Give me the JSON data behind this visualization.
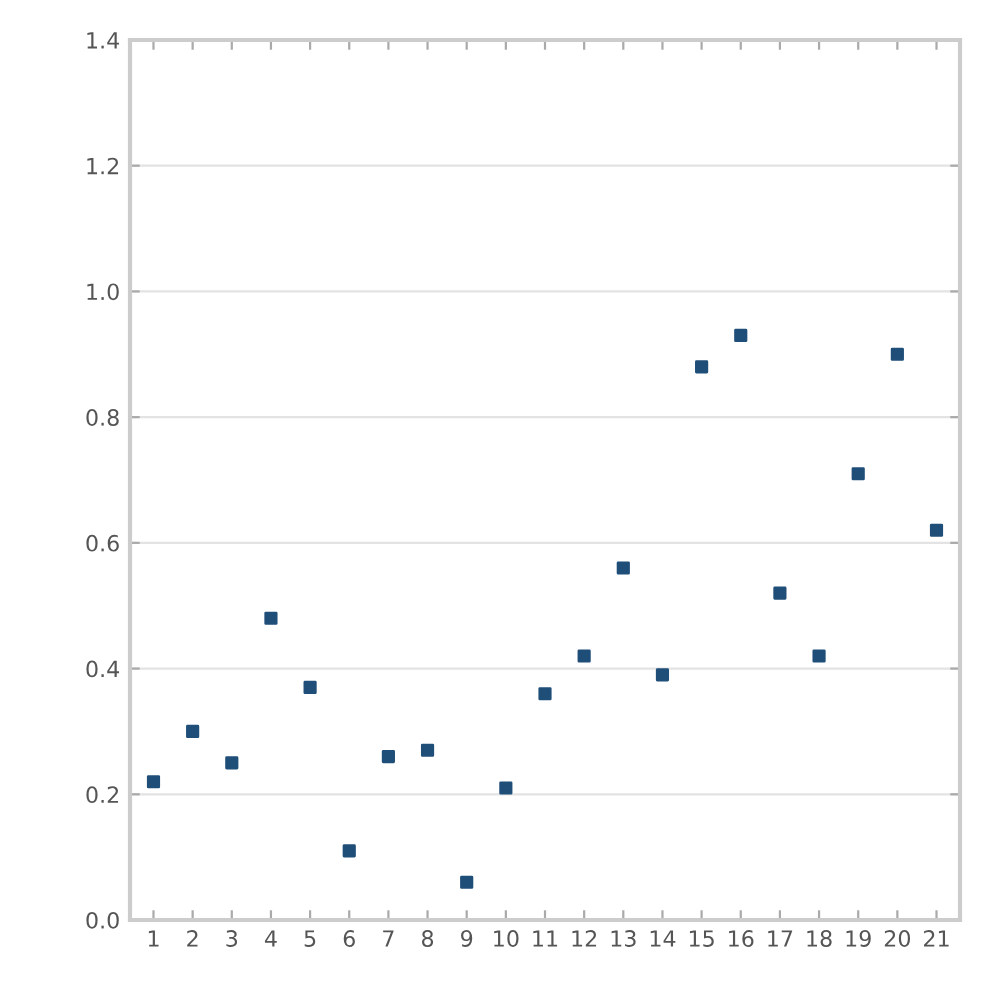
{
  "chart_data": {
    "type": "scatter",
    "categories": [
      "1",
      "2",
      "3",
      "4",
      "5",
      "6",
      "7",
      "8",
      "9",
      "10",
      "11",
      "12",
      "13",
      "14",
      "15",
      "16",
      "17",
      "18",
      "19",
      "20",
      "21"
    ],
    "series": [
      {
        "color": "#1f4e79",
        "values": [
          0.22,
          0.3,
          0.25,
          0.48,
          0.37,
          0.11,
          0.26,
          0.27,
          0.06,
          0.21,
          0.36,
          0.42,
          0.56,
          0.39,
          0.88,
          0.93,
          0.52,
          0.42,
          0.71,
          0.9,
          0.62
        ]
      }
    ],
    "ylim": [
      0,
      1.4
    ],
    "yticks": [
      {
        "value": 0,
        "label": "0.0"
      },
      0.2,
      0.4,
      0.6,
      0.8,
      {
        "value": 1,
        "label": "1.0"
      },
      1.2,
      1.4
    ],
    "grid": "y",
    "marker": "square"
  }
}
